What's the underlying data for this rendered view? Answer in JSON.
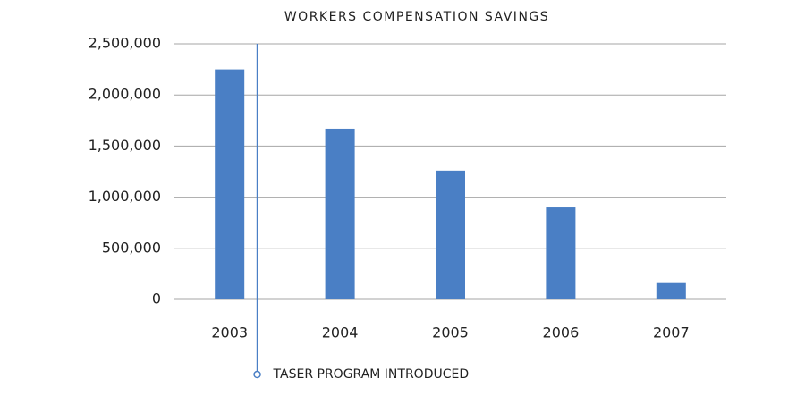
{
  "chart_data": {
    "type": "bar",
    "title": "WORKERS COMPENSATION SAVINGS",
    "categories": [
      "2003",
      "2004",
      "2005",
      "2006",
      "2007"
    ],
    "values": [
      2250000,
      1670000,
      1260000,
      900000,
      160000
    ],
    "color": "#4a7fc5",
    "ylim": [
      0,
      2500000
    ],
    "yticks": [
      0,
      {
        "value": 500000,
        "label": "500,000"
      },
      {
        "value": 1000000,
        "label": "1,000,000"
      },
      {
        "value": 1500000,
        "label": "1,500,000"
      },
      {
        "value": 2000000,
        "label": "2,000,000"
      },
      {
        "value": 2500000,
        "label": "2,500,000"
      }
    ],
    "grid": true,
    "annotation": "TASER PROGRAM INTRODUCED"
  }
}
